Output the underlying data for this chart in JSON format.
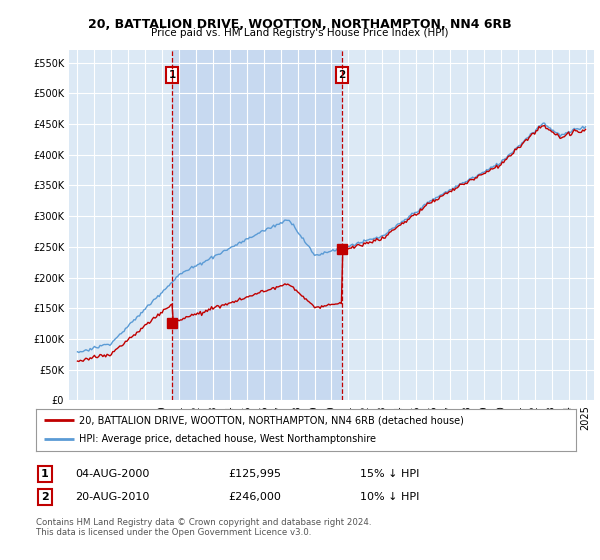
{
  "title": "20, BATTALION DRIVE, WOOTTON, NORTHAMPTON, NN4 6RB",
  "subtitle": "Price paid vs. HM Land Registry's House Price Index (HPI)",
  "sale1": {
    "date_num": 2000.59,
    "price": 125995,
    "label": "1",
    "date_str": "04-AUG-2000",
    "pct": "15% ↓ HPI"
  },
  "sale2": {
    "date_num": 2010.63,
    "price": 246000,
    "label": "2",
    "date_str": "20-AUG-2010",
    "pct": "10% ↓ HPI"
  },
  "legend_line1": "20, BATTALION DRIVE, WOOTTON, NORTHAMPTON, NN4 6RB (detached house)",
  "legend_line2": "HPI: Average price, detached house, West Northamptonshire",
  "footnote": "Contains HM Land Registry data © Crown copyright and database right 2024.\nThis data is licensed under the Open Government Licence v3.0.",
  "hpi_color": "#5b9bd5",
  "price_color": "#c00000",
  "vline_color": "#c00000",
  "bg_color": "#dce9f5",
  "shade_color": "#c5d8f0",
  "grid_color": "#ffffff",
  "ylim": [
    0,
    570000
  ],
  "xlim": [
    1994.5,
    2025.5
  ]
}
